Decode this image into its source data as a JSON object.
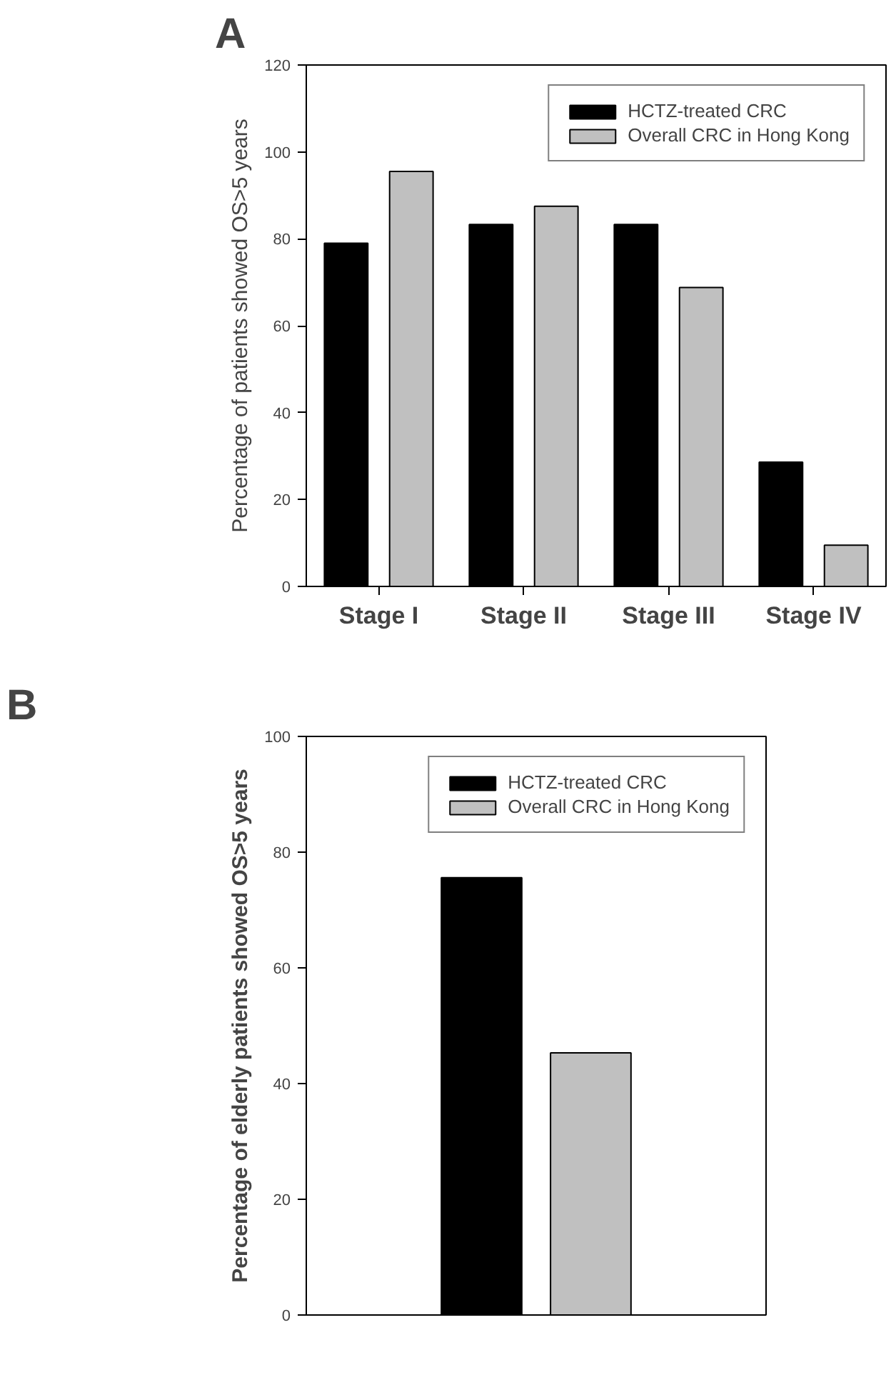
{
  "chart_data": [
    {
      "type": "bar",
      "title": "A",
      "ylabel": "Percentage of patients showed OS>5 years",
      "categories": [
        "Stage I",
        "Stage II",
        "Stage III",
        "Stage IV"
      ],
      "series": [
        {
          "name": "HCTZ-treated CRC",
          "color": "#000000",
          "values": [
            79,
            83.3,
            83.3,
            28.6
          ]
        },
        {
          "name": "Overall CRC in Hong Kong",
          "color": "#c0c0c0",
          "values": [
            95.5,
            87.5,
            68.8,
            9.5
          ]
        }
      ],
      "ylim": [
        0,
        120
      ],
      "yticks": [
        0,
        20,
        40,
        60,
        80,
        100,
        120
      ],
      "grid": false,
      "legend": "top right"
    },
    {
      "type": "bar",
      "title": "B",
      "ylabel": "Percentage of elderly patients showed OS>5 years",
      "categories": [
        null
      ],
      "series": [
        {
          "name": "HCTZ-treated CRC",
          "color": "#000000",
          "values": [
            75.6
          ]
        },
        {
          "name": "Overall CRC in Hong Kong",
          "color": "#c0c0c0",
          "values": [
            45.3
          ]
        }
      ],
      "ylim": [
        0,
        100
      ],
      "yticks": [
        0,
        20,
        40,
        60,
        80,
        100
      ],
      "grid": false,
      "legend": "top right"
    }
  ]
}
